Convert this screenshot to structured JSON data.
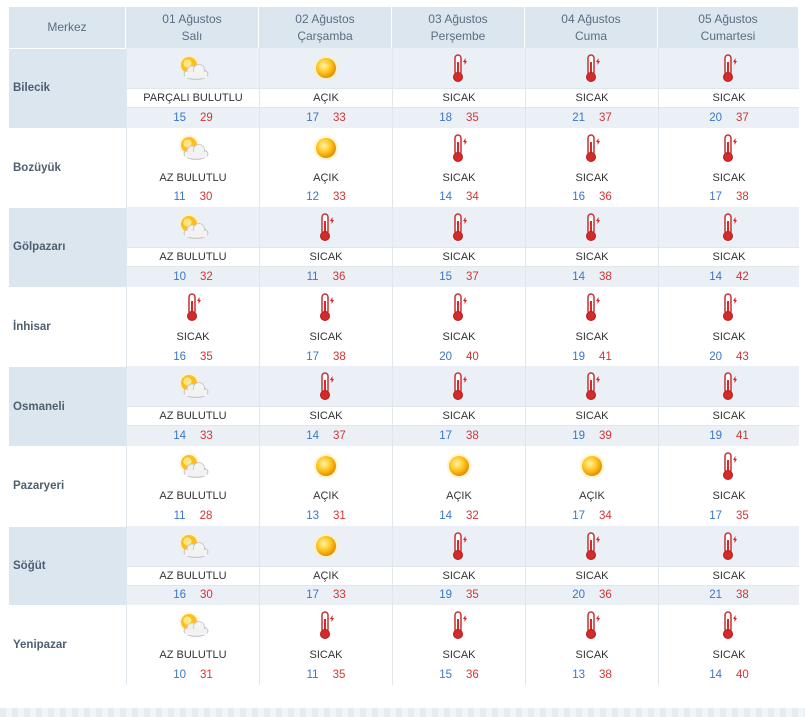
{
  "header": {
    "corner": "Merkez",
    "days": [
      {
        "date": "01 Ağustos",
        "weekday": "Salı"
      },
      {
        "date": "02 Ağustos",
        "weekday": "Çarşamba"
      },
      {
        "date": "03 Ağustos",
        "weekday": "Perşembe"
      },
      {
        "date": "04 Ağustos",
        "weekday": "Cuma"
      },
      {
        "date": "05 Ağustos",
        "weekday": "Cumartesi"
      }
    ]
  },
  "icons": {
    "cloud": "partly-cloudy-icon",
    "sun": "sun-icon",
    "hot": "thermometer-hot-icon"
  },
  "colors": {
    "low_temp": "#3a76c4",
    "high_temp": "#d43434",
    "header_bg": "#dbe6ef"
  },
  "rows": [
    {
      "name": "Bilecik",
      "days": [
        {
          "icon": "cloud",
          "desc": "PARÇALI BULUTLU",
          "low": "15",
          "high": "29"
        },
        {
          "icon": "sun",
          "desc": "AÇIK",
          "low": "17",
          "high": "33"
        },
        {
          "icon": "hot",
          "desc": "SICAK",
          "low": "18",
          "high": "35"
        },
        {
          "icon": "hot",
          "desc": "SICAK",
          "low": "21",
          "high": "37"
        },
        {
          "icon": "hot",
          "desc": "SICAK",
          "low": "20",
          "high": "37"
        }
      ]
    },
    {
      "name": "Bozüyük",
      "days": [
        {
          "icon": "cloud",
          "desc": "AZ BULUTLU",
          "low": "11",
          "high": "30"
        },
        {
          "icon": "sun",
          "desc": "AÇIK",
          "low": "12",
          "high": "33"
        },
        {
          "icon": "hot",
          "desc": "SICAK",
          "low": "14",
          "high": "34"
        },
        {
          "icon": "hot",
          "desc": "SICAK",
          "low": "16",
          "high": "36"
        },
        {
          "icon": "hot",
          "desc": "SICAK",
          "low": "17",
          "high": "38"
        }
      ]
    },
    {
      "name": "Gölpazarı",
      "days": [
        {
          "icon": "cloud",
          "desc": "AZ BULUTLU",
          "low": "10",
          "high": "32"
        },
        {
          "icon": "hot",
          "desc": "SICAK",
          "low": "11",
          "high": "36"
        },
        {
          "icon": "hot",
          "desc": "SICAK",
          "low": "15",
          "high": "37"
        },
        {
          "icon": "hot",
          "desc": "SICAK",
          "low": "14",
          "high": "38"
        },
        {
          "icon": "hot",
          "desc": "SICAK",
          "low": "14",
          "high": "42"
        }
      ]
    },
    {
      "name": "İnhisar",
      "days": [
        {
          "icon": "hot",
          "desc": "SICAK",
          "low": "16",
          "high": "35"
        },
        {
          "icon": "hot",
          "desc": "SICAK",
          "low": "17",
          "high": "38"
        },
        {
          "icon": "hot",
          "desc": "SICAK",
          "low": "20",
          "high": "40"
        },
        {
          "icon": "hot",
          "desc": "SICAK",
          "low": "19",
          "high": "41"
        },
        {
          "icon": "hot",
          "desc": "SICAK",
          "low": "20",
          "high": "43"
        }
      ]
    },
    {
      "name": "Osmaneli",
      "days": [
        {
          "icon": "cloud",
          "desc": "AZ BULUTLU",
          "low": "14",
          "high": "33"
        },
        {
          "icon": "hot",
          "desc": "SICAK",
          "low": "14",
          "high": "37"
        },
        {
          "icon": "hot",
          "desc": "SICAK",
          "low": "17",
          "high": "38"
        },
        {
          "icon": "hot",
          "desc": "SICAK",
          "low": "19",
          "high": "39"
        },
        {
          "icon": "hot",
          "desc": "SICAK",
          "low": "19",
          "high": "41"
        }
      ]
    },
    {
      "name": "Pazaryeri",
      "days": [
        {
          "icon": "cloud",
          "desc": "AZ BULUTLU",
          "low": "11",
          "high": "28"
        },
        {
          "icon": "sun",
          "desc": "AÇIK",
          "low": "13",
          "high": "31"
        },
        {
          "icon": "sun",
          "desc": "AÇIK",
          "low": "14",
          "high": "32"
        },
        {
          "icon": "sun",
          "desc": "AÇIK",
          "low": "17",
          "high": "34"
        },
        {
          "icon": "hot",
          "desc": "SICAK",
          "low": "17",
          "high": "35"
        }
      ]
    },
    {
      "name": "Söğüt",
      "days": [
        {
          "icon": "cloud",
          "desc": "AZ BULUTLU",
          "low": "16",
          "high": "30"
        },
        {
          "icon": "sun",
          "desc": "AÇIK",
          "low": "17",
          "high": "33"
        },
        {
          "icon": "hot",
          "desc": "SICAK",
          "low": "19",
          "high": "35"
        },
        {
          "icon": "hot",
          "desc": "SICAK",
          "low": "20",
          "high": "36"
        },
        {
          "icon": "hot",
          "desc": "SICAK",
          "low": "21",
          "high": "38"
        }
      ]
    },
    {
      "name": "Yenipazar",
      "days": [
        {
          "icon": "cloud",
          "desc": "AZ BULUTLU",
          "low": "10",
          "high": "31"
        },
        {
          "icon": "hot",
          "desc": "SICAK",
          "low": "11",
          "high": "35"
        },
        {
          "icon": "hot",
          "desc": "SICAK",
          "low": "15",
          "high": "36"
        },
        {
          "icon": "hot",
          "desc": "SICAK",
          "low": "13",
          "high": "38"
        },
        {
          "icon": "hot",
          "desc": "SICAK",
          "low": "14",
          "high": "40"
        }
      ]
    }
  ]
}
